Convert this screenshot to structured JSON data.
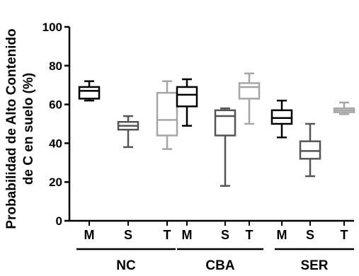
{
  "chart_data": {
    "type": "box",
    "ylabel_lines": [
      "Probabilidad de Alto Contenido",
      "de C en suelo (%)"
    ],
    "ylim": [
      0,
      100
    ],
    "yticks": [
      0,
      20,
      40,
      60,
      80,
      100
    ],
    "grid": false,
    "groups": [
      {
        "name": "NC",
        "boxes": [
          {
            "label": "M",
            "color": "#000000",
            "min": 62,
            "q1": 63,
            "median": 67,
            "q3": 69,
            "max": 72
          },
          {
            "label": "S",
            "color": "#555555",
            "min": 38,
            "q1": 47,
            "median": 49,
            "q3": 51,
            "max": 54
          },
          {
            "label": "T",
            "color": "#a6a6a6",
            "min": 37,
            "q1": 44,
            "median": 52,
            "q3": 66,
            "max": 72
          }
        ]
      },
      {
        "name": "CBA",
        "boxes": [
          {
            "label": "M",
            "color": "#000000",
            "min": 49,
            "q1": 59,
            "median": 65,
            "q3": 69,
            "max": 73
          },
          {
            "label": "S",
            "color": "#555555",
            "min": 18,
            "q1": 44,
            "median": 54,
            "q3": 57,
            "max": 58
          },
          {
            "label": "T",
            "color": "#a6a6a6",
            "min": 50,
            "q1": 63,
            "median": 69,
            "q3": 71,
            "max": 76
          }
        ]
      },
      {
        "name": "SER",
        "boxes": [
          {
            "label": "M",
            "color": "#000000",
            "min": 43,
            "q1": 50,
            "median": 53,
            "q3": 57,
            "max": 62
          },
          {
            "label": "S",
            "color": "#555555",
            "min": 23,
            "q1": 32,
            "median": 36,
            "q3": 41,
            "max": 50
          },
          {
            "label": "T",
            "color": "#a6a6a6",
            "min": 55,
            "q1": 56,
            "median": 57,
            "q3": 58,
            "max": 61
          }
        ]
      }
    ]
  }
}
